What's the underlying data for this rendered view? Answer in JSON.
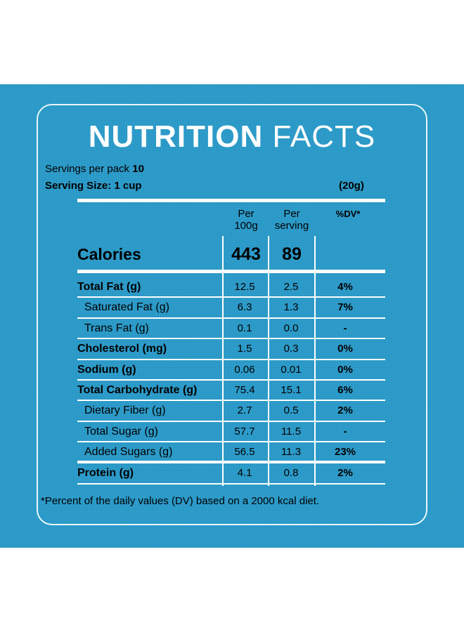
{
  "title": {
    "bold": "NUTRITION",
    "light": "FACTS"
  },
  "servings": {
    "label": "Servings per pack",
    "value": "10"
  },
  "serving_size": {
    "label": "Serving Size: 1 cup",
    "grams": "(20g)"
  },
  "headers": {
    "per100_line1": "Per",
    "per100_line2": "100g",
    "perserv_line1": "Per",
    "perserv_line2": "serving",
    "dv": "%DV*"
  },
  "calories": {
    "label": "Calories",
    "per100": "443",
    "perserv": "89"
  },
  "rows": [
    {
      "label": "Total Fat (g)",
      "per100": "12.5",
      "perserv": "2.5",
      "dv": "4%"
    },
    {
      "label": "Saturated Fat (g)",
      "per100": "6.3",
      "perserv": "1.3",
      "dv": "7%"
    },
    {
      "label": "Trans Fat (g)",
      "per100": "0.1",
      "perserv": "0.0",
      "dv": "-"
    },
    {
      "label": "Cholesterol (mg)",
      "per100": "1.5",
      "perserv": "0.3",
      "dv": "0%"
    },
    {
      "label": "Sodium (g)",
      "per100": "0.06",
      "perserv": "0.01",
      "dv": "0%"
    },
    {
      "label": "Total Carbohydrate (g)",
      "per100": "75.4",
      "perserv": "15.1",
      "dv": "6%"
    },
    {
      "label": "Dietary Fiber (g)",
      "per100": "2.7",
      "perserv": "0.5",
      "dv": "2%"
    },
    {
      "label": "Total Sugar (g)",
      "per100": "57.7",
      "perserv": "11.5",
      "dv": "-"
    },
    {
      "label": "Added Sugars (g)",
      "per100": "56.5",
      "perserv": "11.3",
      "dv": "23%"
    },
    {
      "label": "Protein (g)",
      "per100": "4.1",
      "perserv": "0.8",
      "dv": "2%"
    }
  ],
  "footnote": "*Percent of the daily values (DV) based on a 2000 kcal diet.",
  "colors": {
    "background": "#2a9ac9",
    "text": "#ffffff"
  }
}
